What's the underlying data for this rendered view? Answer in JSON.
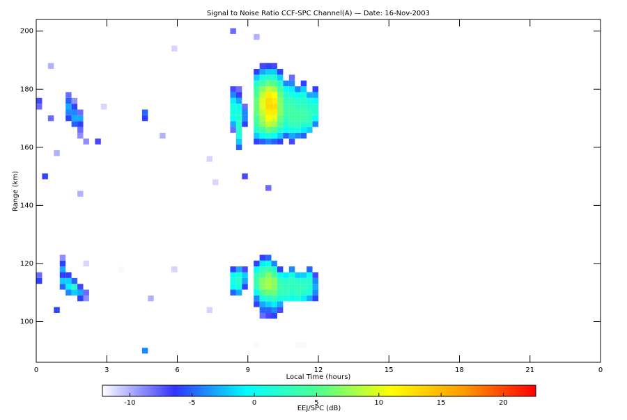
{
  "chart_data": {
    "type": "heatmap",
    "title": "Signal to Noise Ratio CCF-SPC Channel(A) — Date: 16-Nov-2003",
    "x_label": "Local Time (hours)",
    "y_label": "Range (km)",
    "colorbar_label": "EEJ/SPC (dB)",
    "xlim": [
      0,
      24
    ],
    "xticks": [
      0,
      3,
      6,
      9,
      12,
      15,
      18,
      21,
      {
        "value": 24,
        "label": "0"
      }
    ],
    "ylim": [
      86,
      204
    ],
    "yticks": [
      100,
      120,
      140,
      160,
      180,
      200
    ],
    "clim": [
      -12.2,
      22.6
    ],
    "cticks": [
      -10,
      -5,
      0,
      5,
      10,
      15,
      20
    ],
    "colormap": [
      "#ffffff",
      "#3232ff",
      "#00ffff",
      "#50ff90",
      "#ffff00",
      "#ff9a00",
      "#ff0000"
    ],
    "columns": [
      {
        "x": 9.25,
        "y": [
          162,
          164,
          166,
          168,
          170,
          172,
          174,
          176,
          178,
          180,
          182,
          184,
          186
        ],
        "values": [
          -6,
          -2,
          2,
          4,
          5,
          6,
          6,
          6,
          5,
          4,
          2,
          -2,
          -6
        ]
      },
      {
        "x": 9.5,
        "y": [
          162,
          164,
          166,
          168,
          170,
          172,
          174,
          176,
          178,
          180,
          182,
          184,
          186,
          188
        ],
        "values": [
          -5,
          0,
          4,
          7,
          8,
          9,
          10,
          10,
          9,
          7,
          4,
          1,
          -3,
          -7
        ]
      },
      {
        "x": 9.75,
        "y": [
          162,
          164,
          166,
          168,
          170,
          172,
          174,
          176,
          178,
          180,
          182,
          184,
          186,
          188
        ],
        "values": [
          -4,
          1,
          6,
          9,
          11,
          12,
          13,
          13,
          12,
          9,
          6,
          2,
          -2,
          -6
        ]
      },
      {
        "x": 10.0,
        "y": [
          162,
          164,
          166,
          168,
          170,
          172,
          174,
          176,
          178,
          180,
          182,
          184,
          186,
          188
        ],
        "values": [
          -5,
          0,
          5,
          8,
          10,
          12,
          13,
          12,
          11,
          8,
          5,
          2,
          -2,
          -7
        ]
      },
      {
        "x": 10.25,
        "y": [
          162,
          164,
          166,
          168,
          170,
          172,
          174,
          176,
          178,
          180,
          182,
          184,
          186
        ],
        "values": [
          -6,
          -2,
          2,
          5,
          6,
          7,
          7,
          7,
          6,
          4,
          2,
          -2,
          -6
        ]
      },
      {
        "x": 10.5,
        "y": [
          164,
          166,
          168,
          170,
          172,
          174,
          176,
          178,
          180,
          182
        ],
        "values": [
          -5,
          0,
          2,
          3,
          4,
          4,
          3,
          2,
          0,
          -4
        ]
      },
      {
        "x": 10.75,
        "y": [
          162,
          164,
          166,
          168,
          170,
          172,
          174,
          176,
          178,
          180,
          182,
          184
        ],
        "values": [
          -7,
          -3,
          1,
          3,
          4,
          4,
          4,
          3,
          1,
          -1,
          -4,
          -8
        ]
      },
      {
        "x": 11.0,
        "y": [
          164,
          166,
          168,
          170,
          172,
          174,
          176,
          178,
          180
        ],
        "values": [
          -4,
          1,
          3,
          4,
          4,
          3,
          2,
          0,
          -4
        ]
      },
      {
        "x": 11.25,
        "y": [
          164,
          166,
          168,
          170,
          172,
          174,
          176,
          178,
          180,
          182
        ],
        "values": [
          -5,
          -1,
          2,
          4,
          4,
          3,
          2,
          1,
          -2,
          -6
        ]
      },
      {
        "x": 11.5,
        "y": [
          166,
          168,
          170,
          172,
          174,
          176,
          178
        ],
        "values": [
          -2,
          2,
          3,
          3,
          2,
          1,
          -3
        ]
      },
      {
        "x": 11.75,
        "y": [
          168,
          170,
          172,
          174,
          176,
          178,
          180
        ],
        "values": [
          -4,
          0,
          2,
          2,
          0,
          -3,
          -6
        ]
      },
      {
        "x": 8.25,
        "y": [
          166,
          168,
          170,
          172,
          174,
          176,
          178,
          180
        ],
        "values": [
          -8,
          -3,
          0,
          1,
          1,
          -1,
          -4,
          -7
        ]
      },
      {
        "x": 8.5,
        "y": [
          160,
          162,
          164,
          166,
          168,
          170,
          172,
          174,
          176,
          178,
          180
        ],
        "values": [
          -5,
          -2,
          1,
          2,
          2,
          2,
          1,
          0,
          -3,
          -6,
          -8
        ]
      },
      {
        "x": 8.75,
        "y": [
          168,
          170,
          172,
          174
        ],
        "values": [
          -6,
          -4,
          -4,
          -8
        ]
      },
      {
        "x": 9.25,
        "y": [
          106,
          108,
          110,
          112,
          114,
          116,
          118,
          120
        ],
        "values": [
          -6,
          -4,
          0,
          3,
          4,
          3,
          0,
          -6
        ]
      },
      {
        "x": 9.5,
        "y": [
          102,
          104,
          106,
          108,
          110,
          112,
          114,
          116,
          118,
          120,
          122
        ],
        "values": [
          -8,
          -5,
          -3,
          1,
          5,
          7,
          7,
          5,
          3,
          -1,
          -6
        ]
      },
      {
        "x": 9.75,
        "y": [
          102,
          104,
          106,
          108,
          110,
          112,
          114,
          116,
          118,
          120,
          122
        ],
        "values": [
          -7,
          -5,
          -2,
          2,
          6,
          8,
          8,
          7,
          4,
          0,
          -5
        ]
      },
      {
        "x": 10.0,
        "y": [
          102,
          104,
          106,
          108,
          110,
          112,
          114,
          116,
          118,
          120
        ],
        "values": [
          -6,
          -4,
          -1,
          3,
          6,
          7,
          7,
          5,
          2,
          -4
        ]
      },
      {
        "x": 10.25,
        "y": [
          104,
          106,
          108,
          110,
          112,
          114,
          116,
          118
        ],
        "values": [
          -7,
          -3,
          1,
          3,
          4,
          3,
          0,
          -6
        ]
      },
      {
        "x": 10.5,
        "y": [
          108,
          110,
          112,
          114,
          116
        ],
        "values": [
          1,
          3,
          3,
          2,
          -1
        ]
      },
      {
        "x": 10.75,
        "y": [
          108,
          110,
          112,
          114,
          116,
          118
        ],
        "values": [
          0,
          2,
          3,
          3,
          1,
          -4
        ]
      },
      {
        "x": 11.0,
        "y": [
          108,
          110,
          112,
          114,
          116
        ],
        "values": [
          1,
          3,
          3,
          2,
          -2
        ]
      },
      {
        "x": 11.25,
        "y": [
          108,
          110,
          112,
          114,
          116
        ],
        "values": [
          -1,
          2,
          3,
          2,
          -2
        ]
      },
      {
        "x": 11.5,
        "y": [
          108,
          110,
          112,
          114,
          116,
          118
        ],
        "values": [
          -3,
          1,
          2,
          2,
          0,
          -5
        ]
      },
      {
        "x": 11.75,
        "y": [
          108,
          110,
          112,
          114,
          116
        ],
        "values": [
          -6,
          -4,
          -3,
          -4,
          -7
        ]
      },
      {
        "x": 8.25,
        "y": [
          110,
          112,
          114,
          116,
          118
        ],
        "values": [
          -5,
          0,
          1,
          0,
          -6
        ]
      },
      {
        "x": 8.5,
        "y": [
          110,
          112,
          114,
          116,
          118
        ],
        "values": [
          -3,
          1,
          2,
          1,
          -3
        ]
      },
      {
        "x": 8.75,
        "y": [
          112,
          114,
          116,
          118
        ],
        "values": [
          -6,
          -3,
          -2,
          -7
        ]
      },
      {
        "x": 1.25,
        "y": [
          170,
          172,
          174,
          176,
          178
        ],
        "values": [
          -6,
          -4,
          -3,
          -5,
          -8
        ]
      },
      {
        "x": 1.5,
        "y": [
          168,
          170,
          172,
          174,
          176
        ],
        "values": [
          -5,
          -3,
          -4,
          -6,
          -9
        ]
      },
      {
        "x": 1.75,
        "y": [
          164,
          166,
          168,
          170,
          172
        ],
        "values": [
          -9,
          -8,
          -6,
          -3,
          -8
        ]
      },
      {
        "x": 1.0,
        "y": [
          112,
          114,
          116,
          118,
          120,
          122
        ],
        "values": [
          -5,
          -2,
          -6,
          -3,
          -6,
          -9
        ]
      },
      {
        "x": 1.25,
        "y": [
          110,
          112,
          114,
          116
        ],
        "values": [
          -4,
          -1,
          -2,
          -6
        ]
      },
      {
        "x": 1.5,
        "y": [
          110,
          112,
          114
        ],
        "values": [
          -2,
          2,
          -5
        ]
      },
      {
        "x": 1.75,
        "y": [
          108,
          110,
          112
        ],
        "values": [
          -6,
          -3,
          -7
        ]
      },
      {
        "x": 2.0,
        "y": [
          108,
          110
        ],
        "values": [
          -9,
          -8
        ]
      },
      {
        "x": 0.0,
        "y": [
          114,
          116,
          174,
          176
        ],
        "values": [
          -6,
          -8,
          -8,
          -7
        ]
      },
      {
        "x": 4.5,
        "y": [
          170,
          172
        ],
        "values": [
          -6,
          -5
        ]
      },
      {
        "x": 0.5,
        "y": [
          170,
          188
        ],
        "values": [
          -8,
          -10
        ]
      },
      {
        "x": 0.25,
        "y": [
          150
        ],
        "values": [
          -6
        ]
      },
      {
        "x": 0.75,
        "y": [
          158,
          104
        ],
        "values": [
          -10,
          -6
        ]
      },
      {
        "x": 2.5,
        "y": [
          162
        ],
        "values": [
          -7
        ]
      },
      {
        "x": 2.75,
        "y": [
          174
        ],
        "values": [
          -11
        ]
      },
      {
        "x": 1.75,
        "y": [
          144
        ],
        "values": [
          -10
        ]
      },
      {
        "x": 2.0,
        "y": [
          162,
          120
        ],
        "values": [
          -9,
          -11
        ]
      },
      {
        "x": 5.25,
        "y": [
          164
        ],
        "values": [
          -10
        ]
      },
      {
        "x": 5.75,
        "y": [
          194,
          118
        ],
        "values": [
          -11,
          -11
        ]
      },
      {
        "x": 4.5,
        "y": [
          90
        ],
        "values": [
          -4
        ]
      },
      {
        "x": 4.75,
        "y": [
          108
        ],
        "values": [
          -10
        ]
      },
      {
        "x": 7.25,
        "y": [
          156,
          104
        ],
        "values": [
          -11,
          -11
        ]
      },
      {
        "x": 7.5,
        "y": [
          148
        ],
        "values": [
          -11
        ]
      },
      {
        "x": 8.75,
        "y": [
          150
        ],
        "values": [
          -7
        ]
      },
      {
        "x": 9.75,
        "y": [
          146
        ],
        "values": [
          -8
        ]
      },
      {
        "x": 8.25,
        "y": [
          200
        ],
        "values": [
          -8
        ]
      },
      {
        "x": 9.25,
        "y": [
          198,
          92
        ],
        "values": [
          -10,
          -12
        ]
      },
      {
        "x": 3.5,
        "y": [
          118
        ],
        "values": [
          -12
        ]
      },
      {
        "x": 11.0,
        "y": [
          92
        ],
        "values": [
          -12
        ]
      },
      {
        "x": 11.25,
        "y": [
          92
        ],
        "values": [
          -12
        ]
      }
    ]
  }
}
